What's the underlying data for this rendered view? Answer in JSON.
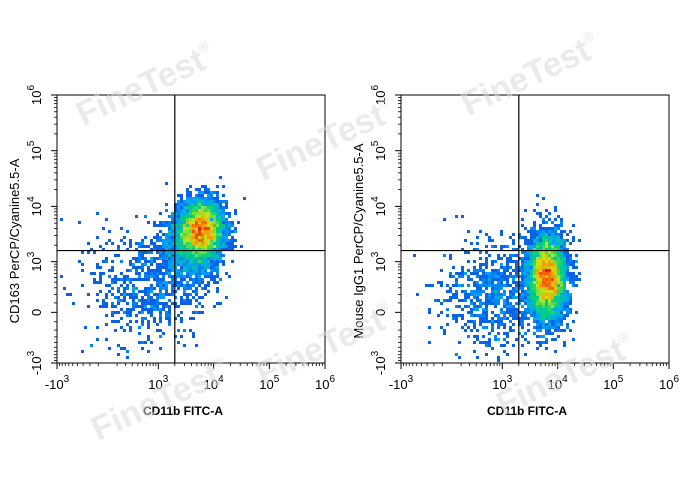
{
  "watermark": "FineTest",
  "watermark_mark": "®",
  "chart_data": [
    {
      "type": "scatter",
      "subtype": "flow-cytometry-density",
      "xlabel": "CD11b FITC-A",
      "ylabel": "CD163 PerCP/Cyanine5.5-A",
      "x_scale": "biexponential",
      "y_scale": "biexponential",
      "xlim": [
        -1000,
        1000000
      ],
      "ylim": [
        -1000,
        1000000
      ],
      "x_ticks": [
        {
          "value": -1000,
          "base": "-10",
          "exp": "3"
        },
        {
          "value": 1000,
          "base": "10",
          "exp": "3"
        },
        {
          "value": 10000,
          "base": "10",
          "exp": "4"
        },
        {
          "value": 100000,
          "base": "10",
          "exp": "5"
        },
        {
          "value": 1000000,
          "base": "10",
          "exp": "6"
        }
      ],
      "y_ticks": [
        {
          "value": -1000,
          "base": "-10",
          "exp": "3"
        },
        {
          "value": 0,
          "base": "0",
          "exp": ""
        },
        {
          "value": 1000,
          "base": "10",
          "exp": "3"
        },
        {
          "value": 10000,
          "base": "10",
          "exp": "4"
        },
        {
          "value": 100000,
          "base": "10",
          "exp": "5"
        },
        {
          "value": 1000000,
          "base": "10",
          "exp": "6"
        }
      ],
      "quadrant_gate": {
        "x": 2000,
        "y": 1600
      },
      "populations": [
        {
          "center_x": 6000,
          "center_y": 3800,
          "spread_x": 0.22,
          "spread_y": 0.28,
          "weight": 0.7
        },
        {
          "center_x": 3500,
          "center_y": 1500,
          "spread_x": 0.3,
          "spread_y": 0.35,
          "weight": 0.18
        },
        {
          "center_x": 600,
          "center_y": 300,
          "spread_x": 0.5,
          "spread_y": 0.6,
          "weight": 0.12
        }
      ],
      "grid": false
    },
    {
      "type": "scatter",
      "subtype": "flow-cytometry-density",
      "xlabel": "CD11b FITC-A",
      "ylabel": "Mouse IgG1 PerCP/Cyanine5.5-A",
      "x_scale": "biexponential",
      "y_scale": "biexponential",
      "xlim": [
        -1000,
        1000000
      ],
      "ylim": [
        -1000,
        1000000
      ],
      "x_ticks": [
        {
          "value": -1000,
          "base": "-10",
          "exp": "3"
        },
        {
          "value": 1000,
          "base": "10",
          "exp": "3"
        },
        {
          "value": 10000,
          "base": "10",
          "exp": "4"
        },
        {
          "value": 100000,
          "base": "10",
          "exp": "5"
        },
        {
          "value": 1000000,
          "base": "10",
          "exp": "6"
        }
      ],
      "y_ticks": [
        {
          "value": -1000,
          "base": "-10",
          "exp": "3"
        },
        {
          "value": 0,
          "base": "0",
          "exp": ""
        },
        {
          "value": 1000,
          "base": "10",
          "exp": "3"
        },
        {
          "value": 10000,
          "base": "10",
          "exp": "4"
        },
        {
          "value": 100000,
          "base": "10",
          "exp": "5"
        },
        {
          "value": 1000000,
          "base": "10",
          "exp": "6"
        }
      ],
      "quadrant_gate": {
        "x": 2000,
        "y": 1600
      },
      "populations": [
        {
          "center_x": 6500,
          "center_y": 500,
          "spread_x": 0.18,
          "spread_y": 0.4,
          "weight": 0.85
        },
        {
          "center_x": 800,
          "center_y": 200,
          "spread_x": 0.5,
          "spread_y": 0.5,
          "weight": 0.15
        }
      ],
      "grid": false
    }
  ]
}
